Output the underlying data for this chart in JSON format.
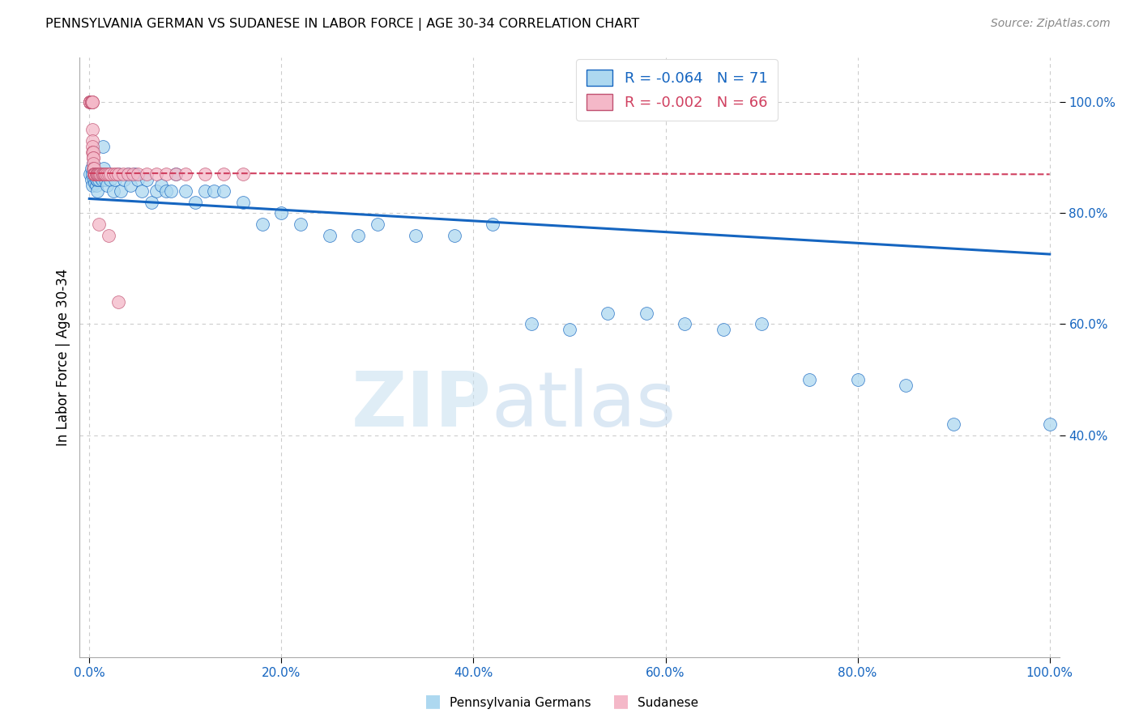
{
  "title": "PENNSYLVANIA GERMAN VS SUDANESE IN LABOR FORCE | AGE 30-34 CORRELATION CHART",
  "source": "Source: ZipAtlas.com",
  "ylabel": "In Labor Force | Age 30-34",
  "blue_R": "-0.064",
  "blue_N": "71",
  "pink_R": "-0.002",
  "pink_N": "66",
  "blue_color": "#add8f0",
  "pink_color": "#f4b8c8",
  "trend_blue": "#1565c0",
  "trend_pink": "#d04060",
  "legend_label_blue": "Pennsylvania Germans",
  "legend_label_pink": "Sudanese",
  "blue_x": [
    0.001,
    0.002,
    0.002,
    0.003,
    0.003,
    0.004,
    0.005,
    0.005,
    0.006,
    0.007,
    0.007,
    0.008,
    0.008,
    0.009,
    0.01,
    0.01,
    0.011,
    0.012,
    0.013,
    0.014,
    0.015,
    0.016,
    0.017,
    0.018,
    0.019,
    0.02,
    0.022,
    0.025,
    0.027,
    0.03,
    0.033,
    0.036,
    0.04,
    0.043,
    0.047,
    0.05,
    0.055,
    0.06,
    0.065,
    0.07,
    0.075,
    0.08,
    0.085,
    0.09,
    0.1,
    0.11,
    0.12,
    0.13,
    0.14,
    0.16,
    0.18,
    0.2,
    0.22,
    0.25,
    0.28,
    0.3,
    0.34,
    0.38,
    0.42,
    0.46,
    0.5,
    0.54,
    0.58,
    0.62,
    0.66,
    0.7,
    0.75,
    0.8,
    0.85,
    0.9,
    1.0
  ],
  "blue_y": [
    0.87,
    0.86,
    0.88,
    0.85,
    0.87,
    0.89,
    0.87,
    0.86,
    0.855,
    0.85,
    0.86,
    0.84,
    0.86,
    0.87,
    0.86,
    0.87,
    0.87,
    0.865,
    0.86,
    0.92,
    0.88,
    0.87,
    0.86,
    0.85,
    0.87,
    0.87,
    0.86,
    0.84,
    0.86,
    0.87,
    0.84,
    0.86,
    0.87,
    0.85,
    0.87,
    0.86,
    0.84,
    0.86,
    0.82,
    0.84,
    0.85,
    0.84,
    0.84,
    0.87,
    0.84,
    0.82,
    0.84,
    0.84,
    0.84,
    0.82,
    0.78,
    0.8,
    0.78,
    0.76,
    0.76,
    0.78,
    0.76,
    0.76,
    0.78,
    0.6,
    0.59,
    0.62,
    0.62,
    0.6,
    0.59,
    0.6,
    0.5,
    0.5,
    0.49,
    0.42,
    0.42
  ],
  "pink_x": [
    0.001,
    0.001,
    0.001,
    0.001,
    0.001,
    0.001,
    0.002,
    0.002,
    0.002,
    0.002,
    0.002,
    0.002,
    0.003,
    0.003,
    0.003,
    0.003,
    0.003,
    0.003,
    0.004,
    0.004,
    0.004,
    0.004,
    0.004,
    0.005,
    0.005,
    0.005,
    0.005,
    0.005,
    0.006,
    0.006,
    0.006,
    0.006,
    0.007,
    0.007,
    0.008,
    0.008,
    0.009,
    0.01,
    0.011,
    0.012,
    0.013,
    0.014,
    0.015,
    0.016,
    0.017,
    0.018,
    0.02,
    0.022,
    0.025,
    0.028,
    0.03,
    0.035,
    0.04,
    0.045,
    0.05,
    0.06,
    0.07,
    0.08,
    0.09,
    0.1,
    0.12,
    0.14,
    0.16,
    0.01,
    0.02,
    0.03
  ],
  "pink_y": [
    1.0,
    1.0,
    1.0,
    1.0,
    1.0,
    1.0,
    1.0,
    1.0,
    1.0,
    1.0,
    1.0,
    1.0,
    1.0,
    1.0,
    0.95,
    0.93,
    0.92,
    0.91,
    0.91,
    0.9,
    0.9,
    0.89,
    0.88,
    0.88,
    0.87,
    0.87,
    0.87,
    0.87,
    0.87,
    0.87,
    0.87,
    0.87,
    0.87,
    0.87,
    0.87,
    0.87,
    0.87,
    0.87,
    0.87,
    0.87,
    0.87,
    0.87,
    0.87,
    0.87,
    0.87,
    0.87,
    0.87,
    0.87,
    0.87,
    0.87,
    0.87,
    0.87,
    0.87,
    0.87,
    0.87,
    0.87,
    0.87,
    0.87,
    0.87,
    0.87,
    0.87,
    0.87,
    0.87,
    0.78,
    0.76,
    0.64
  ],
  "blue_trend_x0": 0.0,
  "blue_trend_y0": 0.826,
  "blue_trend_x1": 1.0,
  "blue_trend_y1": 0.726,
  "pink_trend_x0": 0.0,
  "pink_trend_y0": 0.872,
  "pink_trend_x1": 1.0,
  "pink_trend_y1": 0.87,
  "watermark_zip": "ZIP",
  "watermark_atlas": "atlas",
  "xtick_labels": [
    "0.0%",
    "20.0%",
    "40.0%",
    "60.0%",
    "80.0%",
    "100.0%"
  ],
  "xtick_positions": [
    0.0,
    0.2,
    0.4,
    0.6,
    0.8,
    1.0
  ],
  "ytick_labels": [
    "40.0%",
    "60.0%",
    "80.0%",
    "100.0%"
  ],
  "ytick_positions": [
    0.4,
    0.6,
    0.8,
    1.0
  ],
  "grid_color": "#cccccc",
  "background_color": "#ffffff"
}
